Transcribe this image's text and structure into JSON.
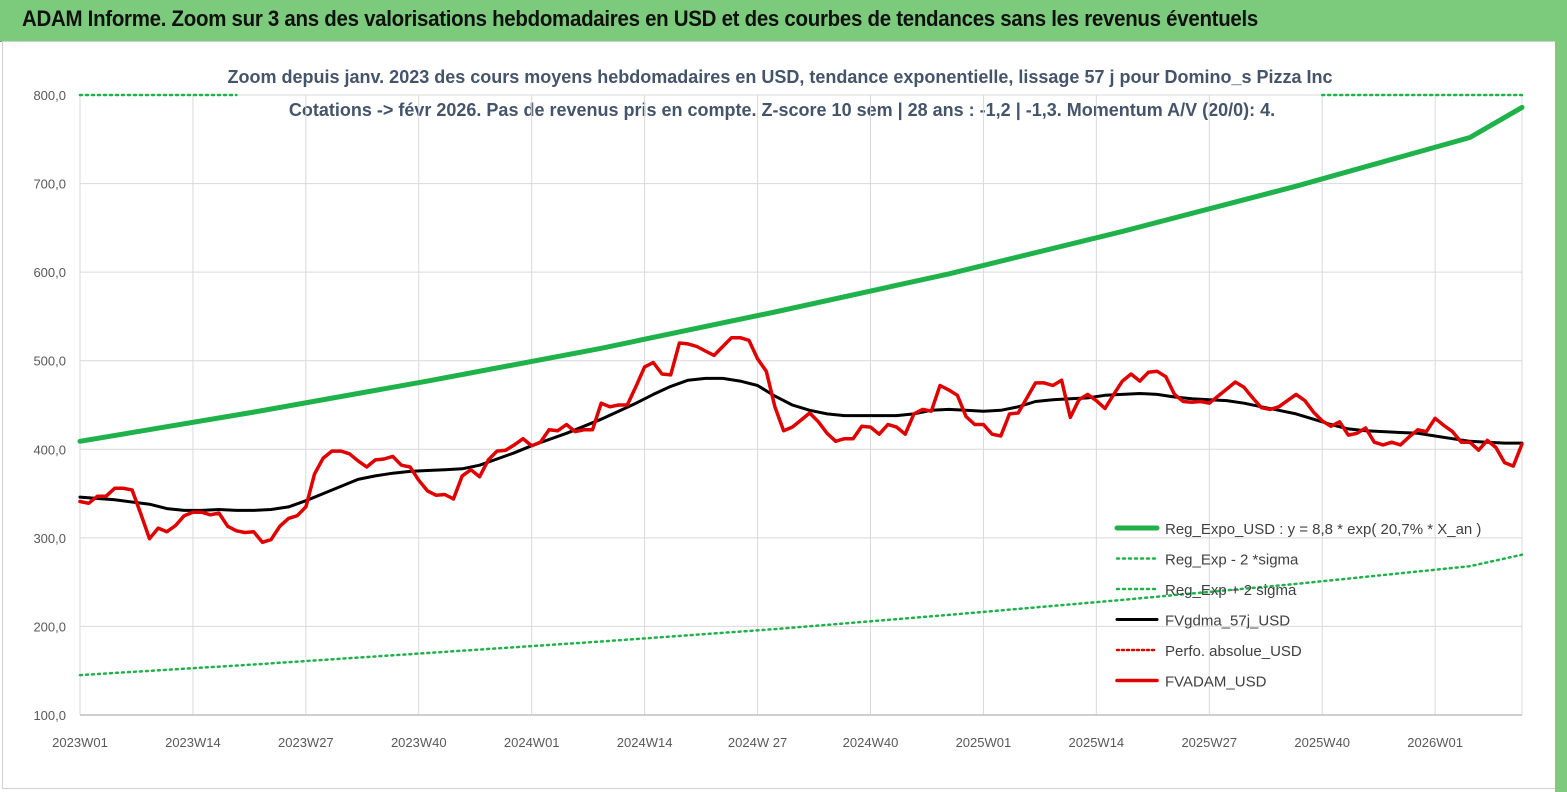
{
  "header": {
    "title": "ADAM Informe. Zoom sur 3 ans des valorisations hebdomadaires en USD et des courbes de tendances sans les revenus éventuels"
  },
  "colors": {
    "banner": "#7ccb7c",
    "reg_expo": "#1fb24a",
    "reg_band": "#1fb24a",
    "fvgdma": "#000000",
    "perfo": "#e00000",
    "fvadam": "#e00000",
    "grid": "#d9d9d9"
  },
  "chart_data": {
    "type": "line",
    "title": "Zoom depuis janv. 2023 des cours moyens hebdomadaires en USD, tendance exponentielle, lissage 57 j pour Domino_s Pizza Inc",
    "subtitle": "Cotations -> févr 2026.  Pas de revenus pris en compte. Z-score 10 sem | 28 ans : -1,2 | -1,3. Momentum A/V (20/0): 4.",
    "xlabel": "",
    "ylabel": "",
    "ylim": [
      100,
      800
    ],
    "y_ticks": [
      "100,0",
      "200,0",
      "300,0",
      "400,0",
      "500,0",
      "600,0",
      "700,0",
      "800,0"
    ],
    "x_tick_labels": [
      "2023W01",
      "2023W14",
      "2023W27",
      "2023W40",
      "2024W01",
      "2024W14",
      "2024W 27",
      "2024W40",
      "2025W01",
      "2025W14",
      "2025W27",
      "2025W40",
      "2026W01"
    ],
    "x_range_weeks": [
      0,
      166
    ],
    "grid": true,
    "legend_position": "bottom-right",
    "series": [
      {
        "name": "Reg_Expo_USD : y = 8,8  * exp( 20,7% *  X_an )",
        "style": "solid-thick",
        "x": [
          0,
          20,
          40,
          60,
          80,
          100,
          120,
          140,
          160,
          166
        ],
        "values": [
          409,
          442,
          477,
          514,
          555,
          598,
          646,
          697,
          752,
          786
        ]
      },
      {
        "name": "Reg_Exp - 2 *sigma",
        "style": "dotted",
        "x": [
          0,
          20,
          40,
          60,
          80,
          100,
          120,
          140,
          160,
          166
        ],
        "values": [
          145,
          157,
          170,
          183,
          197,
          213,
          230,
          248,
          268,
          281
        ]
      },
      {
        "name": "Reg_Exp + 2 sigma",
        "style": "dotted",
        "x": [
          0,
          18,
          143,
          166
        ],
        "values": [
          800,
          800,
          800,
          800
        ],
        "visible_segments": [
          [
            0,
            18
          ],
          [
            143,
            166
          ]
        ]
      },
      {
        "name": "FVgdma_57j_USD",
        "style": "solid",
        "x": [
          0,
          4,
          8,
          10,
          12,
          14,
          16,
          18,
          20,
          22,
          24,
          26,
          28,
          30,
          32,
          34,
          36,
          38,
          40,
          42,
          44,
          46,
          48,
          50,
          52,
          54,
          56,
          58,
          60,
          62,
          64,
          66,
          68,
          70,
          72,
          74,
          76,
          78,
          80,
          82,
          84,
          86,
          88,
          90,
          92,
          94,
          96,
          98,
          100,
          102,
          104,
          106,
          108,
          110,
          112,
          114,
          116,
          118,
          120,
          122,
          124,
          126,
          128,
          130,
          132,
          134,
          136,
          138,
          140,
          142,
          144,
          146,
          148,
          150,
          152,
          154,
          156,
          158,
          160,
          162,
          164,
          166
        ],
        "values": [
          346,
          343,
          338,
          333,
          331,
          331,
          332,
          331,
          331,
          332,
          335,
          342,
          350,
          358,
          366,
          370,
          373,
          375,
          376,
          377,
          378,
          382,
          389,
          396,
          404,
          411,
          418,
          426,
          434,
          443,
          452,
          462,
          471,
          478,
          480,
          480,
          477,
          472,
          460,
          450,
          444,
          440,
          438,
          438,
          438,
          438,
          440,
          444,
          445,
          444,
          443,
          444,
          448,
          454,
          456,
          457,
          458,
          461,
          462,
          463,
          462,
          459,
          457,
          456,
          455,
          452,
          448,
          444,
          440,
          434,
          428,
          423,
          421,
          420,
          419,
          418,
          415,
          412,
          409,
          408,
          407,
          407
        ]
      },
      {
        "name": "Perfo. absolue_USD",
        "style": "dotted",
        "x": [],
        "values": []
      },
      {
        "name": "FVADAM_USD",
        "style": "solid-thick",
        "x": [
          0,
          1,
          2,
          3,
          4,
          5,
          6,
          7,
          8,
          9,
          10,
          11,
          12,
          13,
          14,
          15,
          16,
          17,
          18,
          19,
          20,
          21,
          22,
          23,
          24,
          25,
          26,
          27,
          28,
          29,
          30,
          31,
          32,
          33,
          34,
          35,
          36,
          37,
          38,
          39,
          40,
          41,
          42,
          43,
          44,
          45,
          46,
          47,
          48,
          49,
          50,
          51,
          52,
          53,
          54,
          55,
          56,
          57,
          58,
          59,
          60,
          61,
          62,
          63,
          64,
          65,
          66,
          67,
          68,
          69,
          70,
          71,
          72,
          73,
          74,
          75,
          76,
          77,
          78,
          79,
          80,
          81,
          82,
          83,
          84,
          85,
          86,
          87,
          88,
          89,
          90,
          91,
          92,
          93,
          94,
          95,
          96,
          97,
          98,
          99,
          100,
          101,
          102,
          103,
          104,
          105,
          106,
          107,
          108,
          109,
          110,
          111,
          112,
          113,
          114,
          115,
          116,
          117,
          118,
          119,
          120,
          121,
          122,
          123,
          124,
          125,
          126,
          127,
          128,
          129,
          130,
          131,
          132,
          133,
          134,
          135,
          136,
          137,
          138,
          139,
          140,
          141,
          142,
          143,
          144,
          145,
          146,
          147,
          148,
          149,
          150,
          151,
          152,
          153,
          154,
          155,
          156,
          157,
          158,
          159,
          160,
          161,
          162,
          163,
          164,
          165,
          166
        ],
        "values": [
          341,
          339,
          347,
          347,
          356,
          356,
          354,
          327,
          299,
          311,
          307,
          314,
          325,
          329,
          329,
          326,
          328,
          313,
          308,
          306,
          307,
          295,
          298,
          313,
          322,
          325,
          335,
          372,
          390,
          398,
          398,
          395,
          387,
          380,
          388,
          389,
          392,
          382,
          380,
          365,
          353,
          348,
          349,
          344,
          370,
          377,
          369,
          388,
          398,
          399,
          405,
          412,
          404,
          408,
          422,
          421,
          428,
          420,
          422,
          422,
          452,
          448,
          450,
          450,
          471,
          493,
          498,
          485,
          484,
          520,
          519,
          516,
          511,
          506,
          516,
          526,
          526,
          523,
          502,
          488,
          448,
          421,
          425,
          433,
          441,
          431,
          418,
          409,
          412,
          412,
          426,
          425,
          417,
          428,
          425,
          417,
          440,
          445,
          443,
          472,
          467,
          461,
          437,
          428,
          428,
          417,
          415,
          440,
          441,
          458,
          475,
          475,
          472,
          478,
          436,
          456,
          462,
          455,
          446,
          462,
          477,
          485,
          477,
          487,
          488,
          482,
          462,
          454,
          453,
          454,
          452,
          460,
          468,
          476,
          470,
          458,
          447,
          445,
          448,
          455,
          462,
          455,
          442,
          432,
          426,
          431,
          416,
          418,
          424,
          408,
          405,
          408,
          405,
          414,
          422,
          420,
          435,
          427,
          420,
          408,
          408,
          399,
          410,
          402,
          385,
          381,
          406
        ]
      }
    ]
  }
}
